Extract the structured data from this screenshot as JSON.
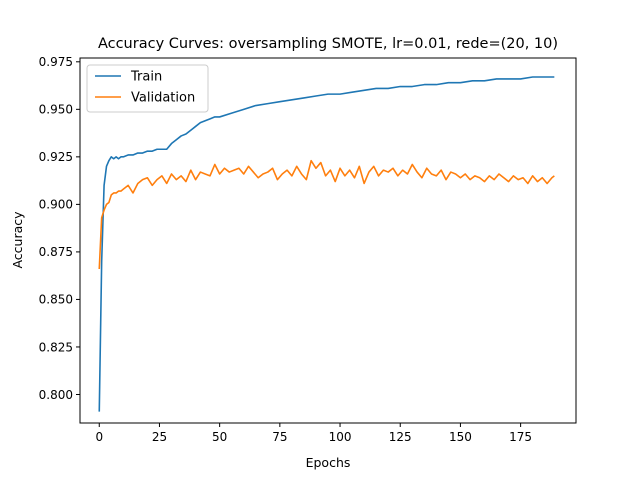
{
  "chart_data": {
    "type": "line",
    "title": "Accuracy Curves: oversampling SMOTE, lr=0.01, rede=(20, 10)",
    "xlabel": "Epochs",
    "ylabel": "Accuracy",
    "xlim": [
      -8,
      198
    ],
    "ylim": [
      0.785,
      0.977
    ],
    "xticks": [
      0,
      25,
      50,
      75,
      100,
      125,
      150,
      175
    ],
    "yticks": [
      0.8,
      0.825,
      0.85,
      0.875,
      0.9,
      0.925,
      0.95,
      0.975
    ],
    "ytick_labels": [
      "0.800",
      "0.825",
      "0.850",
      "0.875",
      "0.900",
      "0.925",
      "0.950",
      "0.975"
    ],
    "grid": false,
    "legend_position": "top-left",
    "series": [
      {
        "name": "Train",
        "color": "#1f77b4",
        "x": [
          0,
          1,
          2,
          3,
          4,
          5,
          6,
          7,
          8,
          9,
          10,
          12,
          14,
          16,
          18,
          20,
          22,
          24,
          26,
          28,
          30,
          32,
          34,
          36,
          38,
          40,
          42,
          44,
          46,
          48,
          50,
          55,
          60,
          65,
          70,
          75,
          80,
          85,
          90,
          95,
          100,
          105,
          110,
          115,
          120,
          125,
          130,
          135,
          140,
          145,
          150,
          155,
          160,
          165,
          170,
          175,
          180,
          185,
          189
        ],
        "y": [
          0.791,
          0.87,
          0.91,
          0.92,
          0.923,
          0.925,
          0.924,
          0.925,
          0.924,
          0.925,
          0.925,
          0.926,
          0.926,
          0.927,
          0.927,
          0.928,
          0.928,
          0.929,
          0.929,
          0.929,
          0.932,
          0.934,
          0.936,
          0.937,
          0.939,
          0.941,
          0.943,
          0.944,
          0.945,
          0.946,
          0.946,
          0.948,
          0.95,
          0.952,
          0.953,
          0.954,
          0.955,
          0.956,
          0.957,
          0.958,
          0.958,
          0.959,
          0.96,
          0.961,
          0.961,
          0.962,
          0.962,
          0.963,
          0.963,
          0.964,
          0.964,
          0.965,
          0.965,
          0.966,
          0.966,
          0.966,
          0.967,
          0.967,
          0.967
        ]
      },
      {
        "name": "Validation",
        "color": "#ff7f0e",
        "x": [
          0,
          1,
          2,
          3,
          4,
          5,
          6,
          7,
          8,
          9,
          10,
          12,
          14,
          16,
          18,
          20,
          22,
          24,
          26,
          28,
          30,
          32,
          34,
          36,
          38,
          40,
          42,
          44,
          46,
          48,
          50,
          52,
          54,
          56,
          58,
          60,
          62,
          64,
          66,
          68,
          70,
          72,
          74,
          76,
          78,
          80,
          82,
          84,
          86,
          88,
          90,
          92,
          94,
          96,
          98,
          100,
          102,
          104,
          106,
          108,
          110,
          112,
          114,
          116,
          118,
          120,
          122,
          124,
          126,
          128,
          130,
          132,
          134,
          136,
          138,
          140,
          142,
          144,
          146,
          148,
          150,
          152,
          154,
          156,
          158,
          160,
          162,
          164,
          166,
          168,
          170,
          172,
          174,
          176,
          178,
          180,
          182,
          184,
          186,
          188,
          189
        ],
        "y": [
          0.866,
          0.893,
          0.897,
          0.9,
          0.901,
          0.905,
          0.906,
          0.906,
          0.907,
          0.907,
          0.908,
          0.91,
          0.906,
          0.911,
          0.913,
          0.914,
          0.91,
          0.913,
          0.915,
          0.911,
          0.916,
          0.913,
          0.915,
          0.912,
          0.918,
          0.913,
          0.917,
          0.916,
          0.915,
          0.921,
          0.916,
          0.919,
          0.917,
          0.918,
          0.919,
          0.916,
          0.92,
          0.917,
          0.914,
          0.916,
          0.917,
          0.919,
          0.913,
          0.916,
          0.918,
          0.915,
          0.92,
          0.916,
          0.913,
          0.923,
          0.919,
          0.922,
          0.915,
          0.918,
          0.912,
          0.919,
          0.915,
          0.918,
          0.914,
          0.92,
          0.911,
          0.917,
          0.92,
          0.915,
          0.918,
          0.917,
          0.919,
          0.915,
          0.918,
          0.916,
          0.921,
          0.917,
          0.914,
          0.919,
          0.916,
          0.915,
          0.918,
          0.913,
          0.917,
          0.916,
          0.914,
          0.916,
          0.913,
          0.915,
          0.914,
          0.912,
          0.915,
          0.913,
          0.916,
          0.914,
          0.912,
          0.915,
          0.913,
          0.914,
          0.911,
          0.915,
          0.912,
          0.914,
          0.911,
          0.914,
          0.915
        ]
      }
    ]
  }
}
